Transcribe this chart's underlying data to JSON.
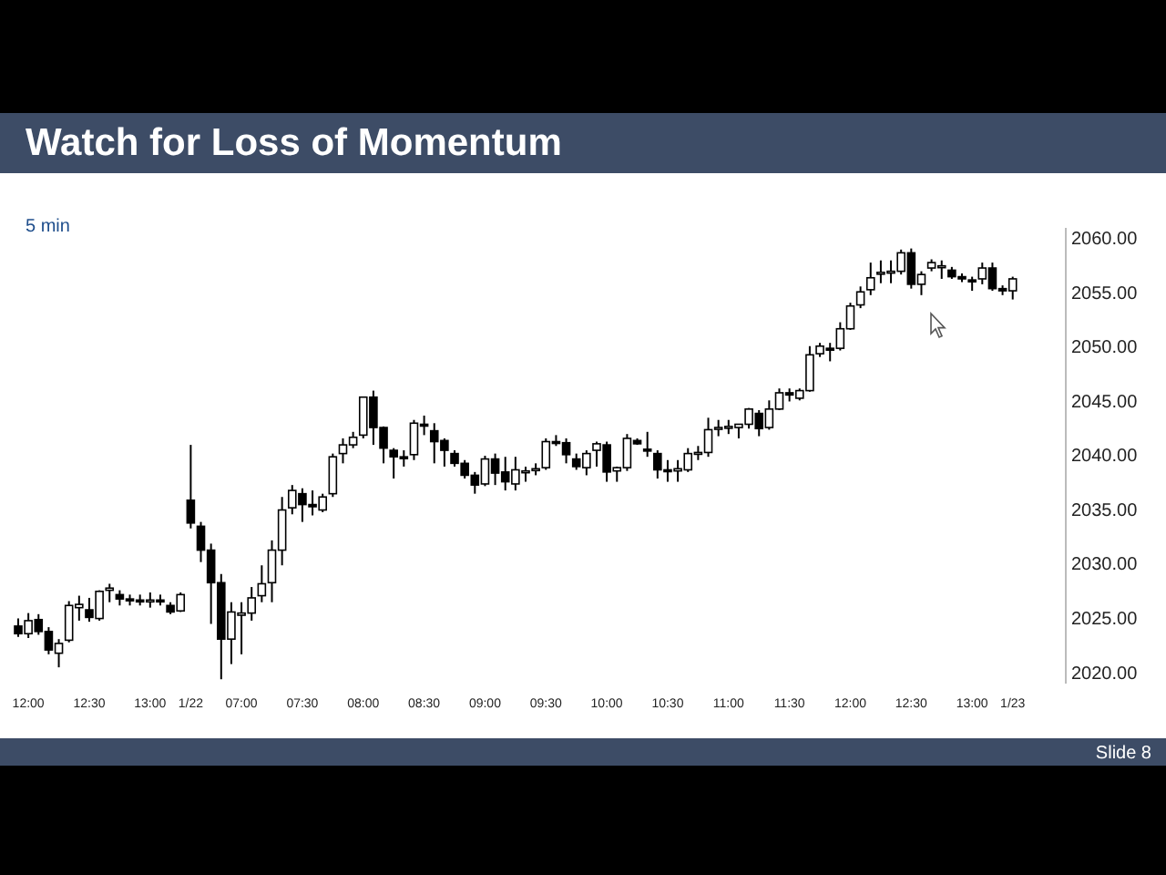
{
  "chart_data": {
    "type": "candlestick",
    "title": "Watch for Loss of Momentum",
    "subtitle": "5 min",
    "annotations": [
      "Slide 8"
    ],
    "categories": [
      null,
      "12:00",
      null,
      null,
      null,
      null,
      null,
      "12:30",
      null,
      null,
      null,
      null,
      null,
      "13:00",
      null,
      null,
      null,
      "1/22",
      null,
      null,
      null,
      null,
      "07:00",
      null,
      null,
      null,
      null,
      null,
      "07:30",
      null,
      null,
      null,
      null,
      null,
      "08:00",
      null,
      null,
      null,
      null,
      null,
      "08:30",
      null,
      null,
      null,
      null,
      null,
      "09:00",
      null,
      null,
      null,
      null,
      null,
      "09:30",
      null,
      null,
      null,
      null,
      null,
      "10:00",
      null,
      null,
      null,
      null,
      null,
      "10:30",
      null,
      null,
      null,
      null,
      null,
      "11:00",
      null,
      null,
      null,
      null,
      null,
      "11:30",
      null,
      null,
      null,
      null,
      null,
      "12:00",
      null,
      null,
      null,
      null,
      null,
      "12:30",
      null,
      null,
      null,
      null,
      null,
      "13:00",
      null,
      null,
      null,
      "1/23"
    ],
    "ohlc": [
      [
        2024.3,
        2025.0,
        2023.3,
        2023.6
      ],
      [
        2023.6,
        2025.5,
        2023.2,
        2024.8
      ],
      [
        2024.9,
        2025.4,
        2023.5,
        2023.8
      ],
      [
        2023.8,
        2024.2,
        2021.7,
        2022.1
      ],
      [
        2021.8,
        2023.1,
        2020.5,
        2022.7
      ],
      [
        2023.0,
        2026.6,
        2022.8,
        2026.2
      ],
      [
        2026.0,
        2027.1,
        2024.8,
        2026.3
      ],
      [
        2025.8,
        2026.9,
        2024.7,
        2025.1
      ],
      [
        2025.0,
        2027.6,
        2024.8,
        2027.5
      ],
      [
        2027.6,
        2028.2,
        2026.5,
        2027.8
      ],
      [
        2027.2,
        2027.6,
        2026.2,
        2026.8
      ],
      [
        2026.8,
        2027.2,
        2026.2,
        2026.7
      ],
      [
        2026.7,
        2027.2,
        2026.2,
        2026.6
      ],
      [
        2026.6,
        2027.4,
        2026.0,
        2026.7
      ],
      [
        2026.7,
        2027.2,
        2026.2,
        2026.6
      ],
      [
        2026.2,
        2026.5,
        2025.4,
        2025.6
      ],
      [
        2025.7,
        2027.4,
        2025.6,
        2027.2
      ],
      [
        2035.9,
        2041.0,
        2033.3,
        2033.8
      ],
      [
        2033.5,
        2033.9,
        2030.2,
        2031.3
      ],
      [
        2031.3,
        2031.9,
        2024.5,
        2028.3
      ],
      [
        2028.3,
        2029.1,
        2019.4,
        2023.1
      ],
      [
        2023.1,
        2026.5,
        2020.8,
        2025.6
      ],
      [
        2025.3,
        2026.5,
        2021.7,
        2025.5
      ],
      [
        2025.5,
        2027.9,
        2024.8,
        2026.9
      ],
      [
        2027.1,
        2029.9,
        2026.5,
        2028.2
      ],
      [
        2028.3,
        2032.2,
        2026.5,
        2031.3
      ],
      [
        2031.3,
        2036.2,
        2029.9,
        2035.0
      ],
      [
        2035.2,
        2037.3,
        2034.6,
        2036.8
      ],
      [
        2036.5,
        2037.0,
        2033.9,
        2035.5
      ],
      [
        2035.5,
        2036.8,
        2034.5,
        2035.3
      ],
      [
        2035.0,
        2036.5,
        2034.8,
        2036.2
      ],
      [
        2036.5,
        2040.2,
        2036.2,
        2039.9
      ],
      [
        2040.2,
        2041.6,
        2039.3,
        2041.0
      ],
      [
        2041.0,
        2042.2,
        2040.7,
        2041.7
      ],
      [
        2041.9,
        2045.4,
        2041.6,
        2045.4
      ],
      [
        2045.4,
        2046.0,
        2041.0,
        2042.6
      ],
      [
        2042.6,
        2042.7,
        2039.3,
        2040.7
      ],
      [
        2040.5,
        2040.7,
        2037.9,
        2039.9
      ],
      [
        2039.9,
        2040.5,
        2039.0,
        2039.8
      ],
      [
        2040.1,
        2043.3,
        2039.6,
        2043.0
      ],
      [
        2042.9,
        2043.7,
        2041.9,
        2042.8
      ],
      [
        2042.3,
        2043.0,
        2039.3,
        2041.3
      ],
      [
        2041.4,
        2041.6,
        2039.0,
        2040.5
      ],
      [
        2040.2,
        2040.5,
        2039.0,
        2039.3
      ],
      [
        2039.3,
        2039.6,
        2037.9,
        2038.2
      ],
      [
        2038.2,
        2038.5,
        2036.5,
        2037.3
      ],
      [
        2037.4,
        2040.0,
        2037.2,
        2039.7
      ],
      [
        2039.7,
        2040.2,
        2037.3,
        2038.4
      ],
      [
        2038.5,
        2039.9,
        2036.8,
        2037.6
      ],
      [
        2037.4,
        2039.9,
        2036.8,
        2038.7
      ],
      [
        2038.5,
        2039.0,
        2037.6,
        2038.6
      ],
      [
        2038.7,
        2039.3,
        2038.2,
        2038.8
      ],
      [
        2038.9,
        2041.6,
        2038.7,
        2041.3
      ],
      [
        2041.3,
        2041.9,
        2040.9,
        2041.2
      ],
      [
        2041.2,
        2041.6,
        2039.3,
        2040.1
      ],
      [
        2039.7,
        2040.2,
        2038.7,
        2039.0
      ],
      [
        2038.9,
        2040.5,
        2038.2,
        2040.2
      ],
      [
        2040.5,
        2041.3,
        2039.0,
        2041.1
      ],
      [
        2041.0,
        2041.3,
        2037.6,
        2038.5
      ],
      [
        2038.6,
        2039.0,
        2037.6,
        2038.9
      ],
      [
        2038.9,
        2042.0,
        2038.6,
        2041.6
      ],
      [
        2041.4,
        2041.6,
        2041.0,
        2041.1
      ],
      [
        2040.6,
        2042.2,
        2039.9,
        2040.5
      ],
      [
        2040.2,
        2040.5,
        2037.9,
        2038.7
      ],
      [
        2038.7,
        2039.6,
        2037.6,
        2038.6
      ],
      [
        2038.6,
        2039.6,
        2037.6,
        2038.8
      ],
      [
        2038.7,
        2040.7,
        2038.5,
        2040.2
      ],
      [
        2040.2,
        2040.9,
        2039.6,
        2040.3
      ],
      [
        2040.3,
        2043.5,
        2039.9,
        2042.4
      ],
      [
        2042.6,
        2043.3,
        2041.8,
        2042.6
      ],
      [
        2042.6,
        2043.3,
        2042.0,
        2042.7
      ],
      [
        2042.6,
        2042.9,
        2041.6,
        2042.9
      ],
      [
        2042.9,
        2044.4,
        2042.5,
        2044.3
      ],
      [
        2043.9,
        2044.2,
        2041.8,
        2042.5
      ],
      [
        2042.6,
        2045.1,
        2042.4,
        2044.3
      ],
      [
        2044.3,
        2046.2,
        2044.2,
        2045.8
      ],
      [
        2045.8,
        2046.2,
        2045.0,
        2045.6
      ],
      [
        2045.3,
        2046.2,
        2045.1,
        2046.0
      ],
      [
        2046.0,
        2050.1,
        2045.9,
        2049.3
      ],
      [
        2049.4,
        2050.4,
        2049.1,
        2050.1
      ],
      [
        2049.9,
        2050.4,
        2048.7,
        2049.8
      ],
      [
        2049.9,
        2052.3,
        2049.7,
        2051.7
      ],
      [
        2051.7,
        2054.1,
        2051.6,
        2053.8
      ],
      [
        2053.9,
        2055.6,
        2053.6,
        2055.1
      ],
      [
        2055.3,
        2057.8,
        2054.8,
        2056.4
      ],
      [
        2056.9,
        2058.0,
        2055.9,
        2056.9
      ],
      [
        2056.9,
        2058.0,
        2055.9,
        2057.0
      ],
      [
        2057.0,
        2059.0,
        2056.7,
        2058.7
      ],
      [
        2058.7,
        2059.1,
        2055.4,
        2055.8
      ],
      [
        2055.8,
        2057.0,
        2054.8,
        2056.7
      ],
      [
        2057.3,
        2058.1,
        2057.0,
        2057.8
      ],
      [
        2057.4,
        2058.0,
        2056.3,
        2057.5
      ],
      [
        2057.1,
        2057.4,
        2056.3,
        2056.5
      ],
      [
        2056.5,
        2056.8,
        2056.0,
        2056.3
      ],
      [
        2056.2,
        2056.5,
        2055.2,
        2056.1
      ],
      [
        2056.3,
        2057.8,
        2055.8,
        2057.3
      ],
      [
        2057.3,
        2057.8,
        2055.2,
        2055.4
      ],
      [
        2055.4,
        2055.7,
        2054.8,
        2055.2
      ],
      [
        2055.2,
        2056.5,
        2054.4,
        2056.3
      ]
    ],
    "yticks": [
      {
        "value": 2020,
        "label": "2020.00"
      },
      {
        "value": 2025,
        "label": "2025.00"
      },
      {
        "value": 2030,
        "label": "2030.00"
      },
      {
        "value": 2035,
        "label": "2035.00"
      },
      {
        "value": 2040,
        "label": "2040.00"
      },
      {
        "value": 2045,
        "label": "2045.00"
      },
      {
        "value": 2050,
        "label": "2050.00"
      },
      {
        "value": 2055,
        "label": "2055.00"
      },
      {
        "value": 2060,
        "label": "2060.00"
      }
    ],
    "ylim": [
      2019,
      2061
    ],
    "grid": false
  }
}
